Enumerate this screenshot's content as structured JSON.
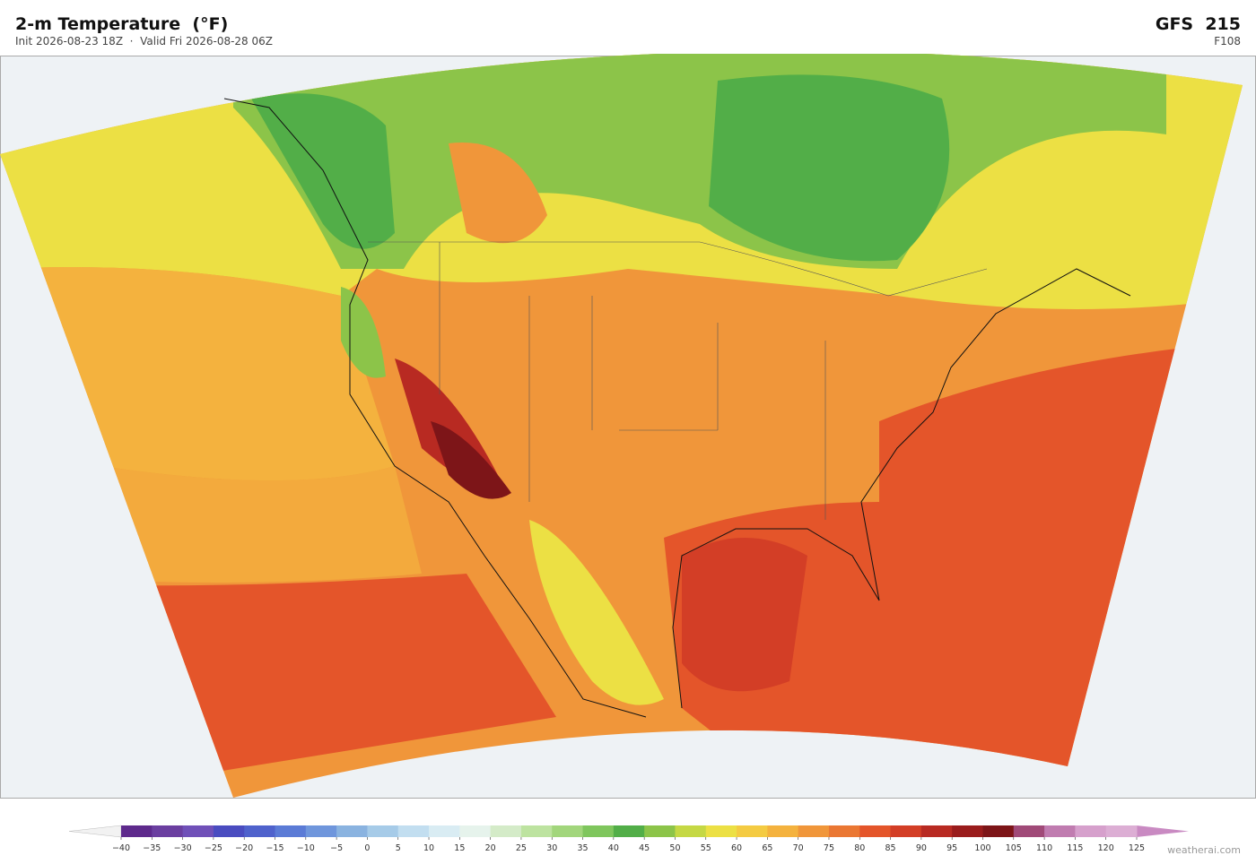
{
  "header": {
    "title": "2-m Temperature  (°F)",
    "subtitle": "Init 2026-08-23 18Z  ·  Valid Fri 2026-08-28 06Z",
    "model": "GFS  215",
    "forecast_hour": "F108"
  },
  "colorbar": {
    "ticks": [
      {
        "value": -40,
        "label": "−40"
      },
      {
        "value": -35,
        "label": "−35"
      },
      {
        "value": -30,
        "label": "−30"
      },
      {
        "value": -25,
        "label": "−25"
      },
      {
        "value": -20,
        "label": "−20"
      },
      {
        "value": -15,
        "label": "−15"
      },
      {
        "value": -10,
        "label": "−10"
      },
      {
        "value": -5,
        "label": "−5"
      },
      0,
      5,
      10,
      15,
      20,
      25,
      30,
      35,
      40,
      45,
      50,
      55,
      60,
      65,
      70,
      75,
      80,
      85,
      90,
      95,
      100,
      105,
      110,
      115,
      120,
      125
    ],
    "colors": [
      "#5e2a8c",
      "#6b3fa0",
      "#7050b8",
      "#4a4cc0",
      "#4f62cc",
      "#5b7bd6",
      "#6f96dc",
      "#8ab3e0",
      "#a6cbe8",
      "#c2def0",
      "#d9ecf3",
      "#e6f3ec",
      "#d4ebc8",
      "#bde3a0",
      "#a2d67c",
      "#7fc65d",
      "#52ae48",
      "#8cc449",
      "#c5d844",
      "#ece044",
      "#f4cb42",
      "#f4b23e",
      "#f0963a",
      "#ea7733",
      "#e4552a",
      "#d33e26",
      "#b82a22",
      "#9a1c1c",
      "#7d1518",
      "#a04a78",
      "#c07cb0",
      "#d6a0cc",
      "#dcaed4"
    ],
    "under_color": "#f2f2f2",
    "over_color": "#c98ac2"
  },
  "credit": "weatherai.com"
}
